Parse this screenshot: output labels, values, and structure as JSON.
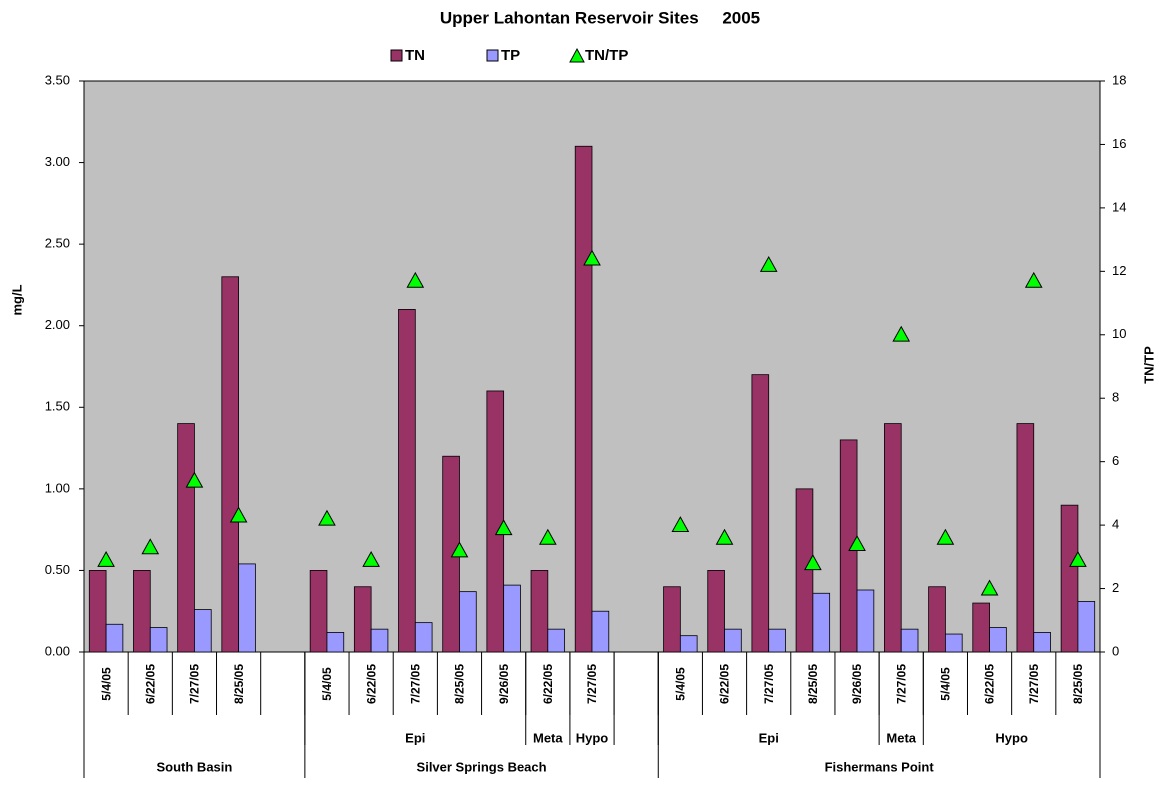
{
  "chart_data": {
    "type": "bar",
    "title": "Upper Lahontan Reservoir Sites     2005",
    "y_label": "mg/L",
    "y2_label": "TN/TP",
    "categories": [
      "5/4/05",
      "6/22/05",
      "7/27/05",
      "8/25/05",
      null,
      "5/4/05",
      "6/22/05",
      "7/27/05",
      "8/25/05",
      "9/26/05",
      "6/22/05",
      "7/27/05",
      null,
      "5/4/05",
      "6/22/05",
      "7/27/05",
      "8/25/05",
      "9/26/05",
      "7/27/05",
      "5/4/05",
      "6/22/05",
      "7/27/05",
      "8/25/05"
    ],
    "subgroups": [
      {
        "name": null,
        "size": 5
      },
      {
        "name": "Epi",
        "size": 5
      },
      {
        "name": "Meta",
        "size": 1
      },
      {
        "name": "Hypo",
        "size": 1
      },
      {
        "name": null,
        "size": 1
      },
      {
        "name": "Epi",
        "size": 5
      },
      {
        "name": "Meta",
        "size": 1
      },
      {
        "name": "Hypo",
        "size": 4
      }
    ],
    "groups": [
      {
        "name": "South Basin",
        "size": 5
      },
      {
        "name": "Silver Springs Beach",
        "size": 8
      },
      {
        "name": "Fishermans Point",
        "size": 10
      }
    ],
    "series": [
      {
        "name": "TN",
        "type": "bar",
        "color": "#993366",
        "values": [
          0.5,
          0.5,
          1.4,
          2.3,
          null,
          0.5,
          0.4,
          2.1,
          1.2,
          1.6,
          0.5,
          3.1,
          null,
          0.4,
          0.5,
          1.7,
          1.0,
          1.3,
          1.4,
          0.4,
          0.3,
          1.4,
          0.9
        ]
      },
      {
        "name": "TP",
        "type": "bar",
        "color": "#9999ff",
        "values": [
          0.17,
          0.15,
          0.26,
          0.54,
          null,
          0.12,
          0.14,
          0.18,
          0.37,
          0.41,
          0.14,
          0.25,
          null,
          0.1,
          0.14,
          0.14,
          0.36,
          0.38,
          0.14,
          0.11,
          0.15,
          0.12,
          0.31
        ]
      },
      {
        "name": "TN/TP",
        "type": "triangle",
        "axis": "y2",
        "color": "#00ff00",
        "values": [
          2.9,
          3.3,
          5.4,
          4.3,
          null,
          4.2,
          2.9,
          11.7,
          3.2,
          3.9,
          3.6,
          12.4,
          null,
          4.0,
          3.6,
          12.2,
          2.8,
          3.4,
          10.0,
          3.6,
          2.0,
          11.7,
          2.9
        ]
      }
    ],
    "ylim": [
      0,
      3.5
    ],
    "yticks": [
      {
        "value": 0,
        "label": "0.00"
      },
      {
        "value": 0.5,
        "label": "0.50"
      },
      {
        "value": 1,
        "label": "1.00"
      },
      {
        "value": 1.5,
        "label": "1.50"
      },
      {
        "value": 2,
        "label": "2.00"
      },
      {
        "value": 2.5,
        "label": "2.50"
      },
      {
        "value": 3,
        "label": "3.00"
      },
      {
        "value": 3.5,
        "label": "3.50"
      }
    ],
    "y2lim": [
      0,
      18
    ],
    "y2ticks": [
      0,
      2,
      4,
      6,
      8,
      10,
      12,
      14,
      16,
      18
    ],
    "grid": false,
    "legend": "top",
    "plot_background": "#c0c0c0"
  }
}
